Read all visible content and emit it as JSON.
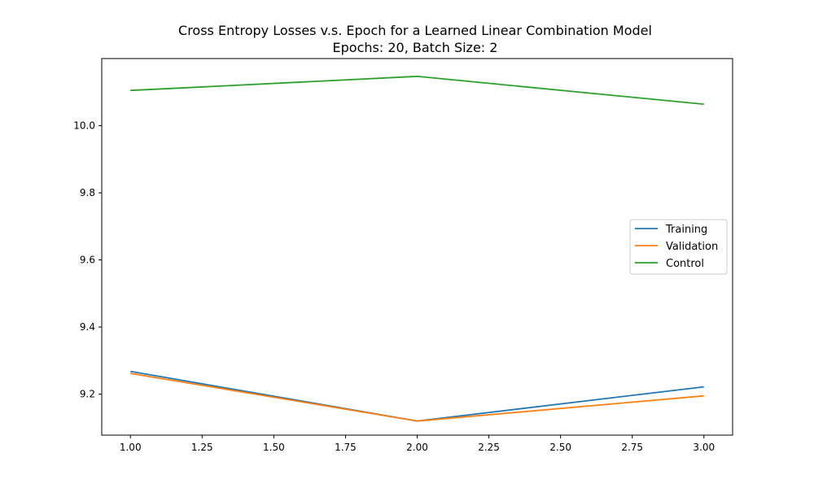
{
  "chart_data": {
    "type": "line",
    "title": [
      "Cross Entropy Losses v.s. Epoch for a Learned Linear Combination Model",
      "Epochs: 20, Batch Size: 2"
    ],
    "xlabel": "",
    "ylabel": "",
    "x": [
      1.0,
      2.0,
      3.0
    ],
    "xlim": [
      0.9,
      3.1
    ],
    "ylim": [
      9.078,
      10.2
    ],
    "xticks": [
      1.0,
      1.25,
      1.5,
      1.75,
      2.0,
      2.25,
      2.5,
      2.75,
      3.0
    ],
    "xtick_labels": [
      "1.00",
      "1.25",
      "1.50",
      "1.75",
      "2.00",
      "2.25",
      "2.50",
      "2.75",
      "3.00"
    ],
    "yticks": [
      9.2,
      9.4,
      9.6,
      9.8,
      10.0
    ],
    "ytick_labels": [
      "9.2",
      "9.4",
      "9.6",
      "9.8",
      "10.0"
    ],
    "grid": false,
    "legend": "center-right",
    "series": [
      {
        "name": "Training",
        "color": "#1f77b4",
        "values": [
          9.268,
          9.12,
          9.222
        ]
      },
      {
        "name": "Validation",
        "color": "#ff7f0e",
        "values": [
          9.262,
          9.12,
          9.195
        ]
      },
      {
        "name": "Control",
        "color": "#2ca02c",
        "values": [
          10.105,
          10.147,
          10.064
        ]
      }
    ]
  }
}
